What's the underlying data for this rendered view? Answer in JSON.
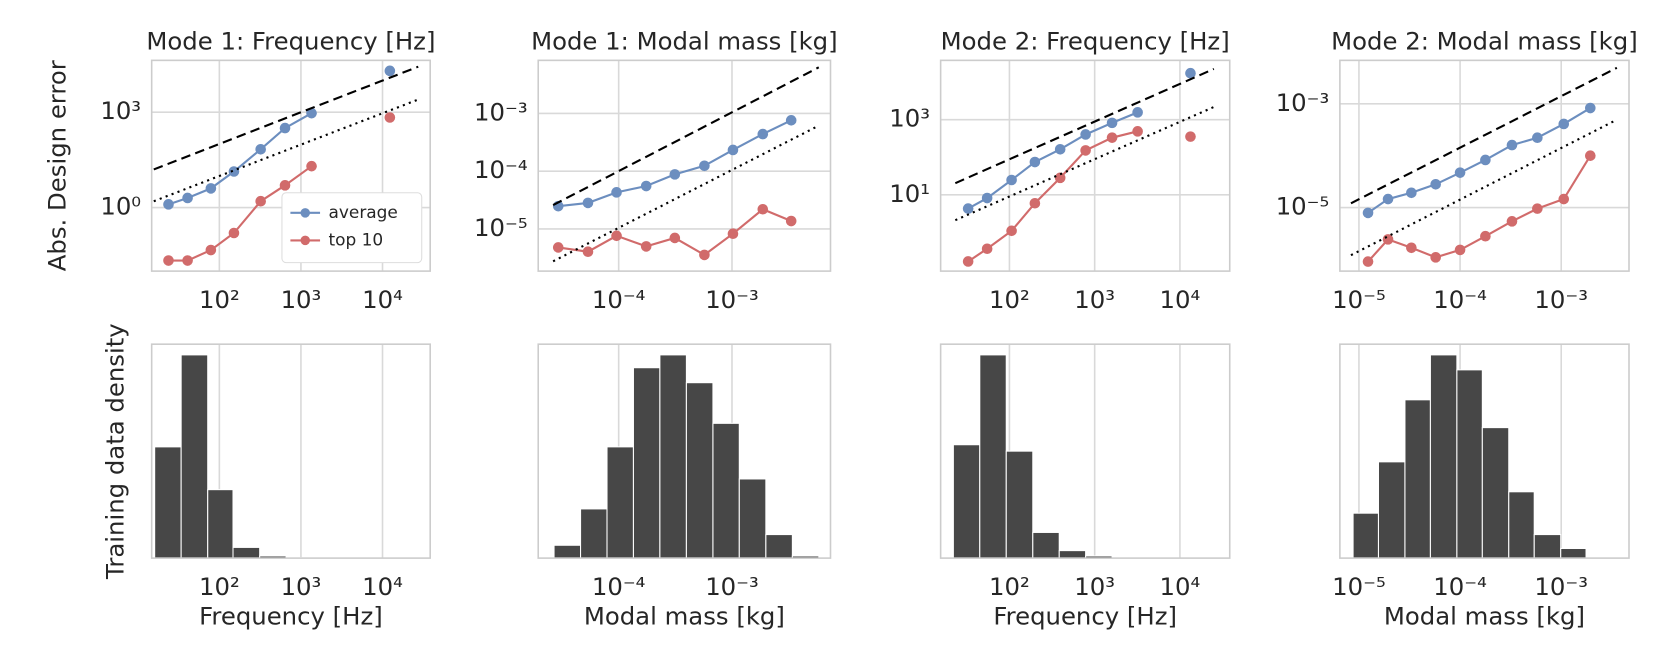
{
  "chart_data": [
    {
      "type": "line",
      "title": "Mode 1: Frequency [Hz]",
      "ylabel": "Abs. Design error",
      "xscale": "log",
      "yscale": "log",
      "grid": true,
      "legend": "lower right",
      "xlim": [
        14.8,
        38400
      ],
      "ylim": [
        0.01,
        42700
      ],
      "xticks": [
        {
          "value": 100,
          "label": "10²"
        },
        {
          "value": 1000,
          "label": "10³"
        },
        {
          "value": 10000,
          "label": "10⁴"
        }
      ],
      "yticks": [
        {
          "value": 1,
          "label": "10⁰"
        },
        {
          "value": 1000,
          "label": "10³"
        }
      ],
      "series": [
        {
          "name": "average",
          "color": "#6c8ebf",
          "x": [
            23.8,
            40.8,
            78.7,
            151,
            321,
            638,
            1350
          ],
          "values": [
            1.26,
            2.0,
            4.0,
            13.6,
            68,
            316,
            930
          ]
        },
        {
          "color": "#6c8ebf",
          "line": false,
          "x": [
            12300
          ],
          "values": [
            20000
          ]
        },
        {
          "name": "top 10",
          "color": "#d16b6b",
          "x": [
            23.8,
            40.8,
            78.7,
            151,
            321,
            638,
            1350
          ],
          "values": [
            0.0215,
            0.0215,
            0.046,
            0.158,
            1.58,
            5.0,
            20
          ]
        },
        {
          "color": "#d16b6b",
          "line": false,
          "x": [
            12300
          ],
          "values": [
            680
          ]
        },
        {
          "color": "#000000",
          "style": "dashed",
          "x": [
            15.7,
            27400
          ],
          "values": [
            15.8,
            27000
          ]
        },
        {
          "color": "#000000",
          "style": "dotted",
          "x": [
            15.7,
            27400
          ],
          "values": [
            1.58,
            2500
          ]
        }
      ]
    },
    {
      "type": "line",
      "title": "Mode 1: Modal mass [kg]",
      "xscale": "log",
      "yscale": "log",
      "grid": true,
      "xlim": [
        1.95e-05,
        0.0074
      ],
      "ylim": [
        1.86e-06,
        0.0083
      ],
      "xticks": [
        {
          "value": 0.0001,
          "label": "10⁻⁴"
        },
        {
          "value": 0.001,
          "label": "10⁻³"
        }
      ],
      "yticks": [
        {
          "value": 1e-05,
          "label": "10⁻⁵"
        },
        {
          "value": 0.0001,
          "label": "10⁻⁴"
        },
        {
          "value": 0.001,
          "label": "10⁻³"
        }
      ],
      "series": [
        {
          "name": "average",
          "color": "#6c8ebf",
          "x": [
            2.93e-05,
            5.36e-05,
            9.58e-05,
            0.000175,
            0.000313,
            0.000571,
            0.00102,
            0.00187,
            0.00333
          ],
          "values": [
            2.48e-05,
            2.82e-05,
            4.3e-05,
            5.53e-05,
            8.8e-05,
            0.000124,
            0.000233,
            0.000439,
            0.00076
          ]
        },
        {
          "name": "top 10",
          "color": "#d16b6b",
          "x": [
            2.93e-05,
            5.36e-05,
            9.58e-05,
            0.000175,
            0.000313,
            0.000571,
            0.00102,
            0.00187,
            0.00333
          ],
          "values": [
            4.78e-06,
            4.03e-06,
            7.6e-06,
            4.98e-06,
            6.98e-06,
            3.55e-06,
            8.26e-06,
            2.19e-05,
            1.37e-05
          ]
        },
        {
          "color": "#000000",
          "style": "dashed",
          "x": [
            2.64e-05,
            0.00583
          ],
          "values": [
            2.59e-05,
            0.00628
          ]
        },
        {
          "color": "#000000",
          "style": "dotted",
          "x": [
            2.64e-05,
            0.00583
          ],
          "values": [
            2.75e-06,
            0.000615
          ]
        }
      ]
    },
    {
      "type": "line",
      "title": "Mode 2: Frequency [Hz]",
      "xscale": "log",
      "yscale": "log",
      "grid": true,
      "xlim": [
        15.6,
        38400
      ],
      "ylim": [
        0.093,
        38000
      ],
      "xticks": [
        {
          "value": 100,
          "label": "10²"
        },
        {
          "value": 1000,
          "label": "10³"
        },
        {
          "value": 10000,
          "label": "10⁴"
        }
      ],
      "yticks": [
        {
          "value": 10,
          "label": "10¹"
        },
        {
          "value": 1000,
          "label": "10³"
        }
      ],
      "series": [
        {
          "name": "average",
          "color": "#6c8ebf",
          "x": [
            32.8,
            54.8,
            106,
            199,
            394,
            783,
            1600,
            3190
          ],
          "values": [
            4.3,
            8.2,
            24.8,
            74.6,
            163,
            404,
            823,
            1570
          ]
        },
        {
          "color": "#6c8ebf",
          "line": false,
          "x": [
            13300
          ],
          "values": [
            17300
          ]
        },
        {
          "name": "top 10",
          "color": "#d16b6b",
          "x": [
            32.8,
            54.8,
            106,
            199,
            394,
            783,
            1600,
            3190
          ],
          "values": [
            0.168,
            0.366,
            1.1,
            5.96,
            28.3,
            152,
            332,
            490
          ]
        },
        {
          "color": "#d16b6b",
          "line": false,
          "x": [
            13300
          ],
          "values": [
            354
          ]
        },
        {
          "color": "#000000",
          "style": "dashed",
          "x": [
            23.2,
            25000
          ],
          "values": [
            20.4,
            22500
          ]
        },
        {
          "color": "#000000",
          "style": "dotted",
          "x": [
            23.2,
            25000
          ],
          "values": [
            2.11,
            2180
          ]
        }
      ]
    },
    {
      "type": "line",
      "title": "Mode 2: Modal mass [kg]",
      "xscale": "log",
      "yscale": "log",
      "grid": true,
      "xlim": [
        6.48e-06,
        0.00468
      ],
      "ylim": [
        5.97e-07,
        0.00687
      ],
      "xticks": [
        {
          "value": 1e-05,
          "label": "10⁻⁵"
        },
        {
          "value": 0.0001,
          "label": "10⁻⁴"
        },
        {
          "value": 0.001,
          "label": "10⁻³"
        }
      ],
      "yticks": [
        {
          "value": 1e-05,
          "label": "10⁻⁵"
        },
        {
          "value": 0.001,
          "label": "10⁻³"
        }
      ],
      "series": [
        {
          "name": "average",
          "color": "#6c8ebf",
          "x": [
            1.23e-05,
            1.94e-05,
            3.3e-05,
            5.74e-05,
            0.0001,
            0.000178,
            0.000326,
            0.000581,
            0.00106,
            0.00194
          ],
          "values": [
            7.9e-06,
            1.46e-05,
            1.93e-05,
            2.81e-05,
            4.71e-05,
            8.28e-05,
            0.00016,
            0.000222,
            0.000409,
            0.000828
          ]
        },
        {
          "name": "top 10",
          "color": "#d16b6b",
          "x": [
            1.23e-05,
            1.94e-05,
            3.3e-05,
            5.74e-05,
            0.0001,
            0.000178,
            0.000326,
            0.000581,
            0.00106,
            0.00194
          ],
          "values": [
            9.1e-07,
            2.44e-06,
            1.68e-06,
            1.1e-06,
            1.53e-06,
            2.81e-06,
            5.43e-06,
            9.55e-06,
            1.46e-05,
            0.0001
          ]
        },
        {
          "color": "#000000",
          "style": "dashed",
          "x": [
            8.34e-06,
            0.00355
          ],
          "values": [
            1.21e-05,
            0.00494
          ]
        },
        {
          "color": "#000000",
          "style": "dotted",
          "x": [
            8.34e-06,
            0.00355
          ],
          "values": [
            1.21e-06,
            0.000494
          ]
        }
      ]
    },
    {
      "type": "histogram",
      "xlabel": "Frequency [Hz]",
      "ylabel": "Training data density",
      "xscale": "log",
      "grid": true,
      "color": "#474747",
      "xlim": [
        14.8,
        38400
      ],
      "ylim": [
        0,
        1
      ],
      "xticks": [
        {
          "value": 100,
          "label": "10²"
        },
        {
          "value": 1000,
          "label": "10³"
        },
        {
          "value": 10000,
          "label": "10⁴"
        }
      ],
      "bins": [
        16.1,
        34,
        72,
        147,
        312,
        658,
        1390
      ],
      "values": [
        0.52,
        0.95,
        0.32,
        0.05,
        0.01,
        0.002
      ]
    },
    {
      "type": "histogram",
      "xlabel": "Modal mass [kg]",
      "xscale": "log",
      "grid": true,
      "color": "#474747",
      "xlim": [
        1.95e-05,
        0.0074
      ],
      "ylim": [
        0,
        1
      ],
      "xticks": [
        {
          "value": 0.0001,
          "label": "10⁻⁴"
        },
        {
          "value": 0.001,
          "label": "10⁻³"
        }
      ],
      "bins": [
        2.69e-05,
        4.61e-05,
        7.89e-05,
        0.000135,
        0.000231,
        0.000396,
        0.000679,
        0.00116,
        0.00199,
        0.00341,
        0.00584
      ],
      "values": [
        0.06,
        0.23,
        0.52,
        0.89,
        0.95,
        0.82,
        0.63,
        0.37,
        0.11,
        0.01
      ]
    },
    {
      "type": "histogram",
      "xlabel": "Frequency [Hz]",
      "xscale": "log",
      "grid": true,
      "color": "#474747",
      "xlim": [
        15.6,
        38400
      ],
      "ylim": [
        0,
        1
      ],
      "xticks": [
        {
          "value": 100,
          "label": "10²"
        },
        {
          "value": 1000,
          "label": "10³"
        },
        {
          "value": 10000,
          "label": "10⁴"
        }
      ],
      "bins": [
        22,
        44.9,
        91.8,
        188,
        384,
        783,
        1600
      ],
      "values": [
        0.53,
        0.95,
        0.5,
        0.12,
        0.035,
        0.01
      ]
    },
    {
      "type": "histogram",
      "xlabel": "Modal mass [kg]",
      "xscale": "log",
      "grid": true,
      "color": "#474747",
      "xlim": [
        6.48e-06,
        0.00468
      ],
      "ylim": [
        0,
        1
      ],
      "xticks": [
        {
          "value": 1e-05,
          "label": "10⁻⁵"
        },
        {
          "value": 0.0001,
          "label": "10⁻⁴"
        },
        {
          "value": 0.001,
          "label": "10⁻³"
        }
      ],
      "bins": [
        8.75e-06,
        1.56e-05,
        2.85e-05,
        5.09e-05,
        9.3e-05,
        0.000166,
        0.000303,
        0.000541,
        0.000989,
        0.00176
      ],
      "values": [
        0.21,
        0.45,
        0.74,
        0.95,
        0.88,
        0.61,
        0.31,
        0.11,
        0.045
      ]
    }
  ]
}
